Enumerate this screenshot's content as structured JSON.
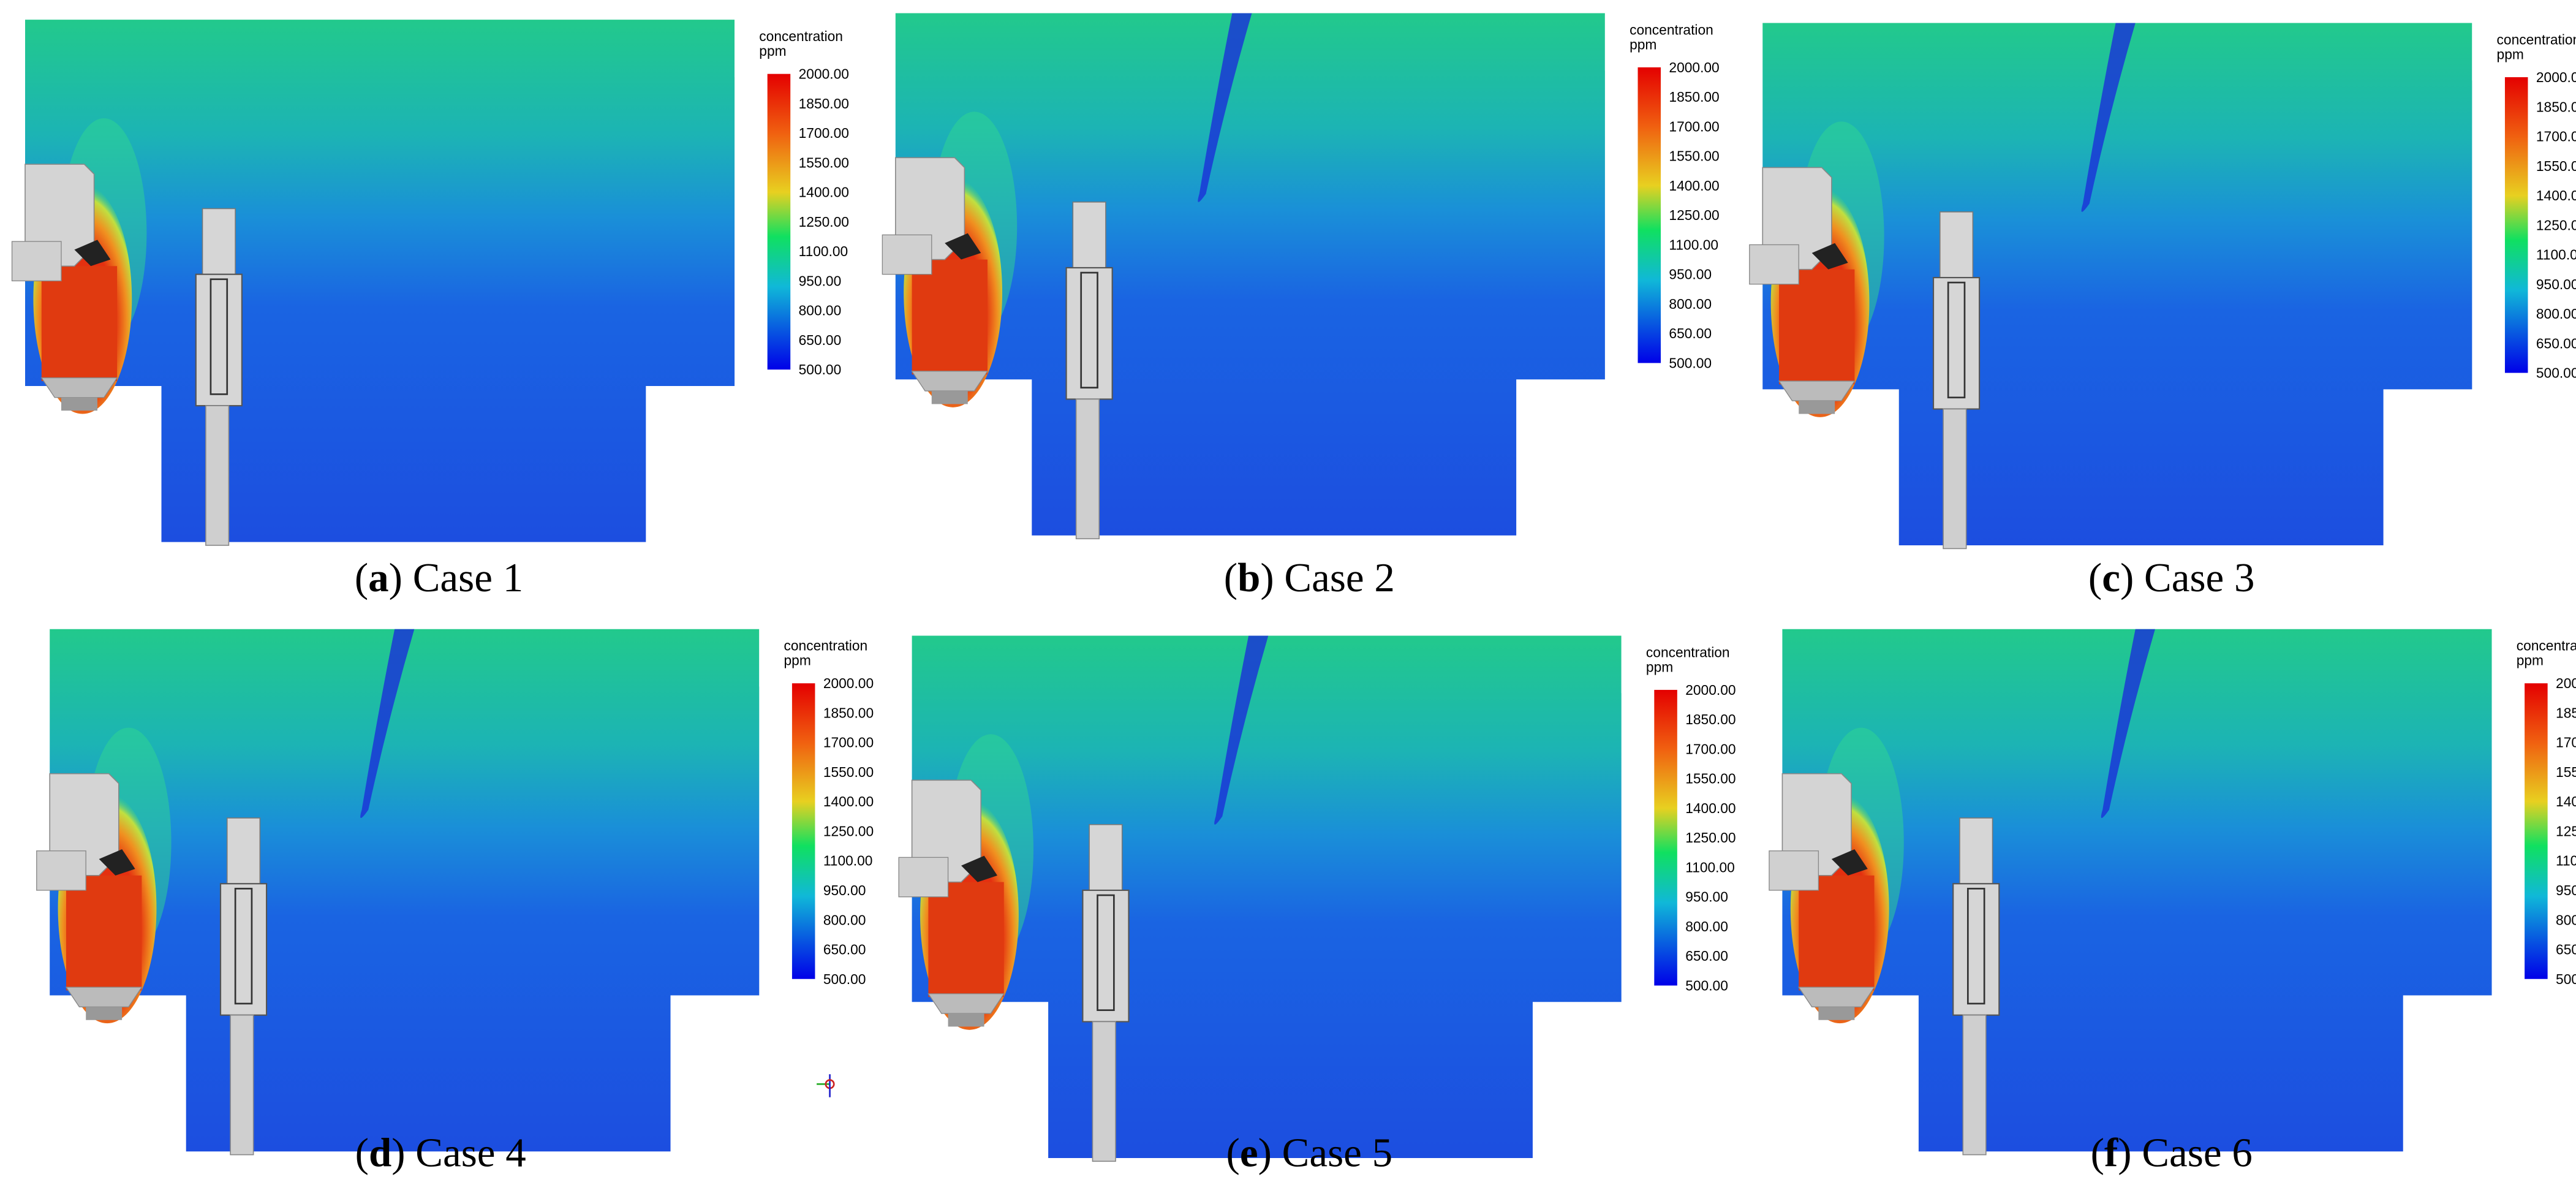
{
  "colorbar": {
    "title": "concentration",
    "unit": "ppm",
    "labels": [
      "2000.00",
      "1850.00",
      "1700.00",
      "1550.00",
      "1400.00",
      "1250.00",
      "1100.00",
      "950.00",
      "800.00",
      "650.00",
      "500.00"
    ]
  },
  "panels": [
    {
      "caption": [
        "(",
        "a",
        ") Case 1"
      ]
    },
    {
      "caption": [
        "(",
        "b",
        ") Case 2"
      ]
    },
    {
      "caption": [
        "(",
        "c",
        ") Case 3"
      ]
    },
    {
      "caption": [
        "(",
        "d",
        ") Case 4"
      ]
    },
    {
      "caption": [
        "(",
        "e",
        ") Case 5"
      ]
    },
    {
      "caption": [
        "(",
        "f",
        ") Case 6"
      ]
    }
  ]
}
